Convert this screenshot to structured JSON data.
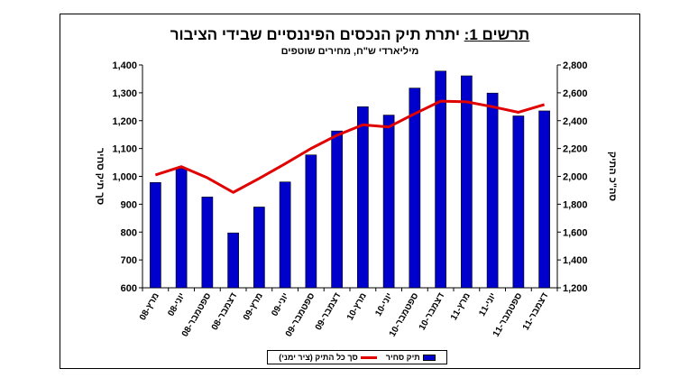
{
  "title_lead": "תרשים 1:",
  "title_rest": " יתרת תיק הנכסים הפיננסיים שבידי הציבור",
  "subtitle": "מיליארדי ש\"ח, מחירים שוטפים",
  "colors": {
    "bar": "#0000CC",
    "line": "#E00000"
  },
  "chart_data": {
    "type": "bar",
    "categories": [
      "מרץ-08",
      "יוני-08",
      "ספטמבר-08",
      "דצמבר-08",
      "מרץ-09",
      "יוני-09",
      "ספטמבר-09",
      "דצמבר-09",
      "מרץ-10",
      "יוני-10",
      "ספטמבר-10",
      "דצמבר-10",
      "מרץ-11",
      "יוני-11",
      "ספטמבר-11",
      "דצמבר-11"
    ],
    "series": [
      {
        "name": "תיק סחיר",
        "type": "bar",
        "axis": "left",
        "values": [
          978,
          1028,
          926,
          797,
          890,
          980,
          1077,
          1163,
          1250,
          1220,
          1317,
          1378,
          1361,
          1299,
          1217,
          1235
        ]
      },
      {
        "name": "סך כל התיק (ציר ימני)",
        "type": "line",
        "axis": "right",
        "values": [
          2010,
          2070,
          1990,
          1885,
          1985,
          2090,
          2200,
          2295,
          2370,
          2355,
          2450,
          2540,
          2535,
          2500,
          2460,
          2515
        ]
      }
    ],
    "ylabel_left": "סך תיק סחיר",
    "ylabel_right": "סה\"כ התיק",
    "ylim_left": [
      600,
      1400
    ],
    "ylim_right": [
      1200,
      2800
    ],
    "yticks_left": [
      "1,400",
      "1,300",
      "1,200",
      "1,100",
      "1,000",
      "900",
      "800",
      "700",
      "600"
    ],
    "yticks_right": [
      "2,800",
      "2,600",
      "2,400",
      "2,200",
      "2,000",
      "1,800",
      "1,600",
      "1,400",
      "1,200"
    ],
    "legend_position": "bottom",
    "grid": false
  }
}
